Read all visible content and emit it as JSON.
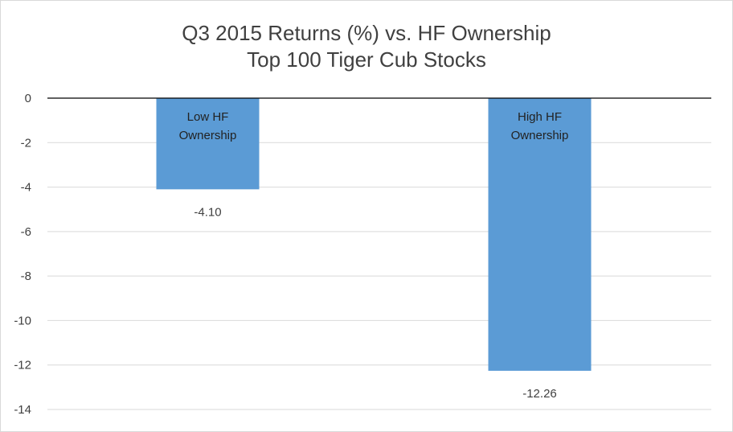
{
  "chart_data": {
    "type": "bar",
    "title": "Q3 2015 Returns (%) vs. HF Ownership",
    "subtitle": "Top 100 Tiger Cub Stocks",
    "categories": [
      {
        "line1": "Low HF",
        "line2": "Ownership"
      },
      {
        "line1": "High HF",
        "line2": "Ownership"
      }
    ],
    "values": [
      -4.1,
      -12.26
    ],
    "data_labels": [
      "-4.10",
      "-12.26"
    ],
    "ylim": [
      -14,
      0
    ],
    "yticks": [
      0,
      -2,
      -4,
      -6,
      -8,
      -10,
      -12,
      -14
    ],
    "grid": true,
    "legend": "none",
    "bar_color": "#5b9bd5",
    "grid_color": "#d9d9d9",
    "axis_color": "#000000"
  }
}
